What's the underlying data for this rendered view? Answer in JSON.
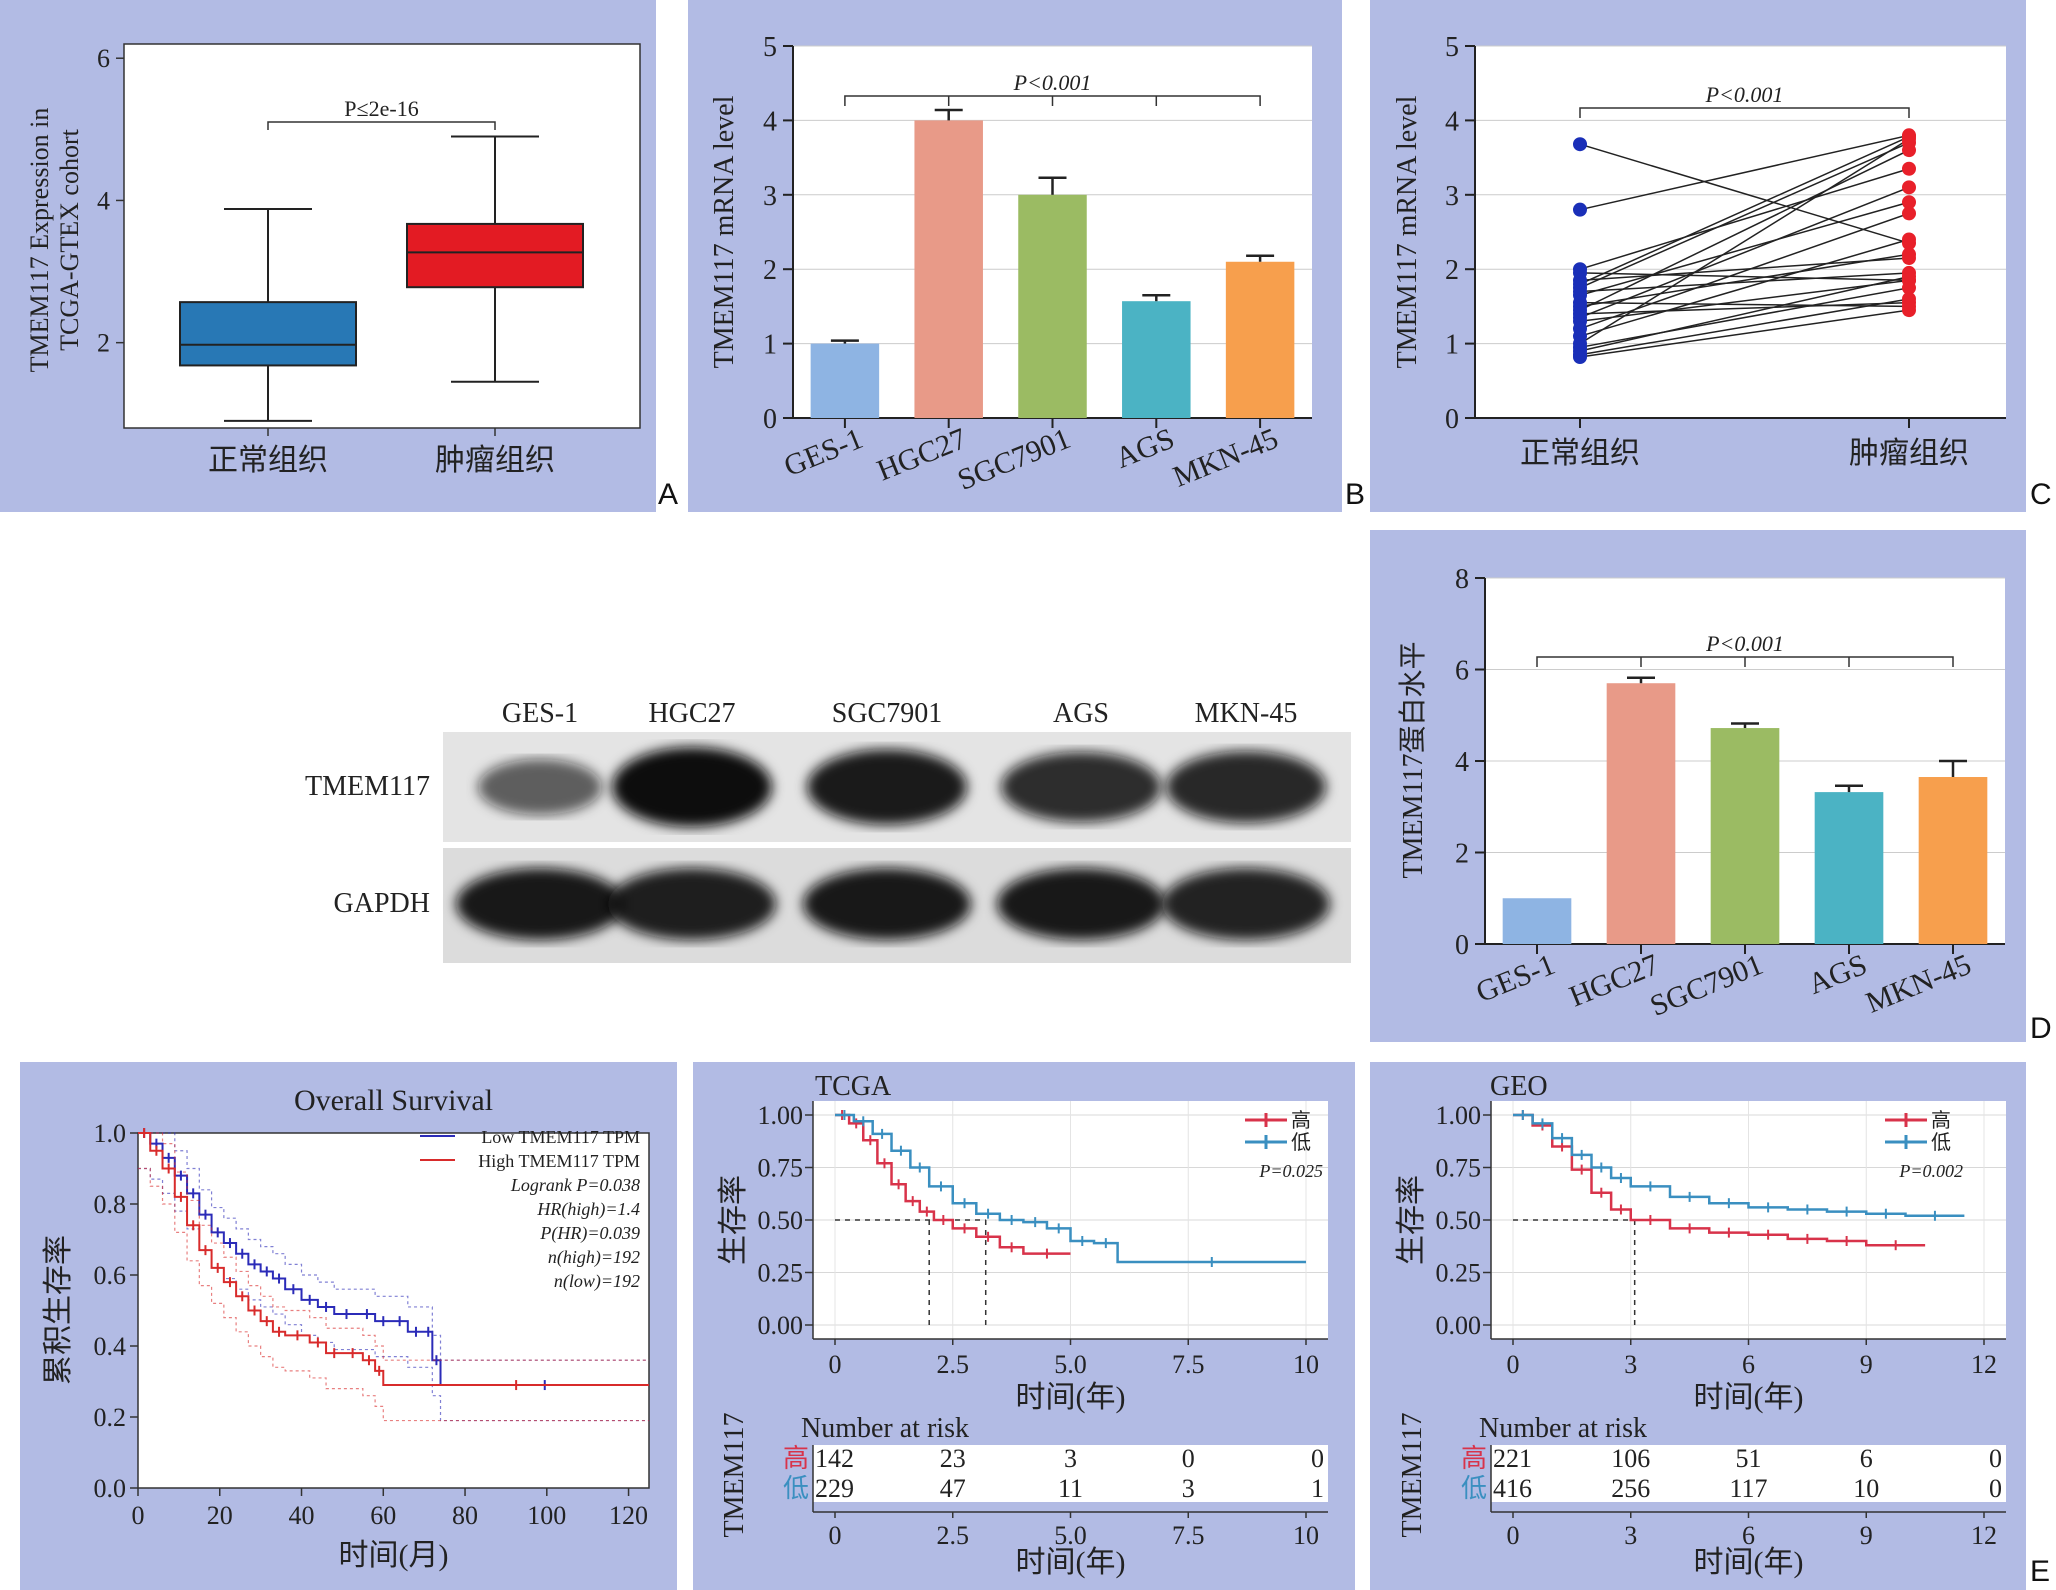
{
  "figure": {
    "letters": [
      "A",
      "B",
      "C",
      "D",
      "E"
    ]
  },
  "chart_data": [
    {
      "id": "A",
      "type": "box",
      "ylabel": "TMEM117 Expression in TCGA-GTEX cohort",
      "ylabel_lines": [
        "TMEM117 Expression in",
        "TCGA-GTEX cohort"
      ],
      "ylim": [
        0.8,
        6.2
      ],
      "yticks": [
        2,
        4,
        6
      ],
      "categories": [
        "正常组织",
        "肿瘤组织"
      ],
      "boxes": [
        {
          "category": "正常组织",
          "min": 0.9,
          "q1": 1.68,
          "median": 1.97,
          "q3": 2.57,
          "max": 3.88,
          "color": "#2878b5"
        },
        {
          "category": "肿瘤组织",
          "min": 1.45,
          "q1": 2.78,
          "median": 3.27,
          "q3": 3.67,
          "max": 4.9,
          "color": "#e31b23"
        }
      ],
      "annotation": "P≤2e-16"
    },
    {
      "id": "B",
      "type": "bar",
      "ylabel": "TMEM117 mRNA level",
      "ylim": [
        0,
        5
      ],
      "yticks": [
        0,
        1,
        2,
        3,
        4,
        5
      ],
      "categories": [
        "GES-1",
        "HGC27",
        "SGC7901",
        "AGS",
        "MKN-45"
      ],
      "values": [
        1.0,
        4.0,
        3.0,
        1.57,
        2.1
      ],
      "errors": [
        0.04,
        0.14,
        0.23,
        0.08,
        0.08
      ],
      "colors": [
        "#8eb4e3",
        "#e89a88",
        "#9bbb63",
        "#4bb3c4",
        "#f79f4d"
      ],
      "annotation": "P<0.001"
    },
    {
      "id": "C",
      "type": "paired-scatter",
      "ylabel": "TMEM117 mRNA level",
      "ylim": [
        0,
        5
      ],
      "yticks": [
        0,
        1,
        2,
        3,
        4,
        5
      ],
      "categories": [
        "正常组织",
        "肿瘤组织"
      ],
      "pairs": [
        [
          3.68,
          2.35
        ],
        [
          2.8,
          3.8
        ],
        [
          2.0,
          3.35
        ],
        [
          1.95,
          1.85
        ],
        [
          1.85,
          2.15
        ],
        [
          1.8,
          3.78
        ],
        [
          1.75,
          3.7
        ],
        [
          1.7,
          1.95
        ],
        [
          1.65,
          2.9
        ],
        [
          1.55,
          1.5
        ],
        [
          1.5,
          2.2
        ],
        [
          1.45,
          3.6
        ],
        [
          1.4,
          1.55
        ],
        [
          1.35,
          3.1
        ],
        [
          1.3,
          1.85
        ],
        [
          1.1,
          2.4
        ],
        [
          1.0,
          3.75
        ],
        [
          0.95,
          1.75
        ],
        [
          0.9,
          1.9
        ],
        [
          0.85,
          1.6
        ],
        [
          0.82,
          1.45
        ],
        [
          1.2,
          2.75
        ]
      ],
      "colors": [
        "#1a2fb8",
        "#e8202a"
      ],
      "annotation": "P<0.001"
    },
    {
      "id": "D",
      "type": "bar",
      "ylabel": "TMEM117蛋白水平",
      "ylim": [
        0,
        8
      ],
      "yticks": [
        0,
        2,
        4,
        6,
        8
      ],
      "categories": [
        "GES-1",
        "HGC27",
        "SGC7901",
        "AGS",
        "MKN-45"
      ],
      "values": [
        1.0,
        5.7,
        4.72,
        3.32,
        3.65
      ],
      "errors": [
        0.0,
        0.12,
        0.1,
        0.14,
        0.35
      ],
      "colors": [
        "#8eb4e3",
        "#e89a88",
        "#9bbb63",
        "#4bb3c4",
        "#f79f4d"
      ],
      "annotation": "P<0.001"
    },
    {
      "id": "E1",
      "type": "line",
      "title": "Overall Survival",
      "xlabel": "时间(月)",
      "ylabel": "累积生存率",
      "xlim": [
        0,
        125
      ],
      "ylim": [
        0,
        1
      ],
      "xticks": [
        0,
        20,
        40,
        60,
        80,
        100,
        120
      ],
      "yticks": [
        0.0,
        0.2,
        0.4,
        0.6,
        0.8,
        1.0
      ],
      "series": [
        {
          "name": "Low TMEM117 TPM",
          "color": "#2b2bb8",
          "points": [
            [
              0,
              1.0
            ],
            [
              3,
              0.97
            ],
            [
              6,
              0.93
            ],
            [
              9,
              0.88
            ],
            [
              12,
              0.83
            ],
            [
              15,
              0.77
            ],
            [
              18,
              0.72
            ],
            [
              21,
              0.69
            ],
            [
              24,
              0.66
            ],
            [
              27,
              0.63
            ],
            [
              30,
              0.61
            ],
            [
              33,
              0.59
            ],
            [
              36,
              0.56
            ],
            [
              40,
              0.53
            ],
            [
              44,
              0.51
            ],
            [
              48,
              0.49
            ],
            [
              54,
              0.49
            ],
            [
              58,
              0.47
            ],
            [
              62,
              0.47
            ],
            [
              66,
              0.44
            ],
            [
              70,
              0.44
            ],
            [
              72,
              0.36
            ],
            [
              74,
              0.29
            ],
            [
              125,
              0.29
            ]
          ]
        },
        {
          "name": "High TMEM117 TPM",
          "color": "#d82b2b",
          "points": [
            [
              0,
              1.0
            ],
            [
              3,
              0.95
            ],
            [
              6,
              0.9
            ],
            [
              9,
              0.82
            ],
            [
              12,
              0.74
            ],
            [
              15,
              0.67
            ],
            [
              18,
              0.62
            ],
            [
              21,
              0.58
            ],
            [
              24,
              0.54
            ],
            [
              27,
              0.5
            ],
            [
              30,
              0.47
            ],
            [
              33,
              0.44
            ],
            [
              36,
              0.43
            ],
            [
              42,
              0.41
            ],
            [
              46,
              0.38
            ],
            [
              50,
              0.38
            ],
            [
              55,
              0.36
            ],
            [
              58,
              0.33
            ],
            [
              60,
              0.29
            ],
            [
              125,
              0.29
            ]
          ]
        }
      ],
      "legend_stats": [
        "Logrank P=0.038",
        "HR(high)=1.4",
        "P(HR)=0.039",
        "n(high)=192",
        "n(low)=192"
      ]
    },
    {
      "id": "E2",
      "type": "line",
      "title": "TCGA",
      "xlabel": "时间(年)",
      "ylabel": "生存率",
      "xlim": [
        0,
        10
      ],
      "ylim": [
        0,
        1
      ],
      "xticks": [
        0,
        2.5,
        5.0,
        7.5,
        10
      ],
      "xtick_labels": [
        "0",
        "2.5",
        "5.0",
        "7.5",
        "10"
      ],
      "yticks": [
        0.0,
        0.25,
        0.5,
        0.75,
        1.0
      ],
      "ytick_labels": [
        "0.00",
        "0.25",
        "0.50",
        "0.75",
        "1.00"
      ],
      "legend": [
        "高",
        "低"
      ],
      "pvalue": "P=0.025",
      "series": [
        {
          "name": "高",
          "color": "#d8334a",
          "points": [
            [
              0,
              1.0
            ],
            [
              0.3,
              0.96
            ],
            [
              0.6,
              0.88
            ],
            [
              0.9,
              0.77
            ],
            [
              1.2,
              0.67
            ],
            [
              1.5,
              0.59
            ],
            [
              1.8,
              0.54
            ],
            [
              2.1,
              0.5
            ],
            [
              2.5,
              0.46
            ],
            [
              3.0,
              0.42
            ],
            [
              3.5,
              0.37
            ],
            [
              4.0,
              0.34
            ],
            [
              5.0,
              0.34
            ]
          ]
        },
        {
          "name": "低",
          "color": "#3a8fc0",
          "points": [
            [
              0,
              1.0
            ],
            [
              0.4,
              0.97
            ],
            [
              0.8,
              0.91
            ],
            [
              1.2,
              0.83
            ],
            [
              1.6,
              0.75
            ],
            [
              2.0,
              0.66
            ],
            [
              2.5,
              0.58
            ],
            [
              3.0,
              0.53
            ],
            [
              3.5,
              0.5
            ],
            [
              4.0,
              0.49
            ],
            [
              4.5,
              0.46
            ],
            [
              5.0,
              0.4
            ],
            [
              5.5,
              0.39
            ],
            [
              6.0,
              0.3
            ],
            [
              10,
              0.3
            ]
          ]
        }
      ],
      "medians": [
        2.0,
        3.2
      ],
      "risk_table": {
        "title": "Number at risk",
        "group_label": "TMEM117",
        "rows": [
          {
            "label": "高",
            "counts": [
              "142",
              "23",
              "3",
              "0",
              "0"
            ]
          },
          {
            "label": "低",
            "counts": [
              "229",
              "47",
              "11",
              "3",
              "1"
            ]
          }
        ],
        "xlabel": "时间(年)"
      }
    },
    {
      "id": "E3",
      "type": "line",
      "title": "GEO",
      "xlabel": "时间(年)",
      "ylabel": "生存率",
      "xlim": [
        0,
        12
      ],
      "ylim": [
        0,
        1
      ],
      "xticks": [
        0,
        3,
        6,
        9,
        12
      ],
      "yticks": [
        0.0,
        0.25,
        0.5,
        0.75,
        1.0
      ],
      "ytick_labels": [
        "0.00",
        "0.25",
        "0.50",
        "0.75",
        "1.00"
      ],
      "legend": [
        "高",
        "低"
      ],
      "pvalue": "P=0.002",
      "series": [
        {
          "name": "高",
          "color": "#d8334a",
          "points": [
            [
              0,
              1.0
            ],
            [
              0.5,
              0.95
            ],
            [
              1.0,
              0.85
            ],
            [
              1.5,
              0.74
            ],
            [
              2.0,
              0.63
            ],
            [
              2.5,
              0.55
            ],
            [
              3.0,
              0.5
            ],
            [
              4.0,
              0.46
            ],
            [
              5.0,
              0.44
            ],
            [
              6.0,
              0.43
            ],
            [
              7.0,
              0.41
            ],
            [
              8.0,
              0.4
            ],
            [
              9.0,
              0.38
            ],
            [
              10.5,
              0.38
            ]
          ]
        },
        {
          "name": "低",
          "color": "#3a8fc0",
          "points": [
            [
              0,
              1.0
            ],
            [
              0.5,
              0.96
            ],
            [
              1.0,
              0.89
            ],
            [
              1.5,
              0.81
            ],
            [
              2.0,
              0.75
            ],
            [
              2.5,
              0.7
            ],
            [
              3.0,
              0.66
            ],
            [
              4.0,
              0.61
            ],
            [
              5.0,
              0.58
            ],
            [
              6.0,
              0.56
            ],
            [
              7.0,
              0.55
            ],
            [
              8.0,
              0.54
            ],
            [
              9.0,
              0.53
            ],
            [
              10.0,
              0.52
            ],
            [
              11.5,
              0.52
            ]
          ]
        }
      ],
      "medians": [
        3.1
      ],
      "risk_table": {
        "title": "Number at risk",
        "group_label": "TMEM117",
        "rows": [
          {
            "label": "高",
            "counts": [
              "221",
              "106",
              "51",
              "6",
              "0"
            ]
          },
          {
            "label": "低",
            "counts": [
              "416",
              "256",
              "117",
              "10",
              "0"
            ]
          }
        ],
        "xlabel": "时间(年)"
      }
    }
  ],
  "western_blot": {
    "lanes": [
      "GES-1",
      "HGC27",
      "SGC7901",
      "AGS",
      "MKN-45"
    ],
    "rows": [
      "TMEM117",
      "GAPDH"
    ],
    "tmem117_intensity": [
      0.45,
      1.0,
      0.9,
      0.78,
      0.82
    ],
    "gapdh_intensity": [
      0.95,
      0.92,
      0.95,
      0.95,
      0.9
    ]
  }
}
